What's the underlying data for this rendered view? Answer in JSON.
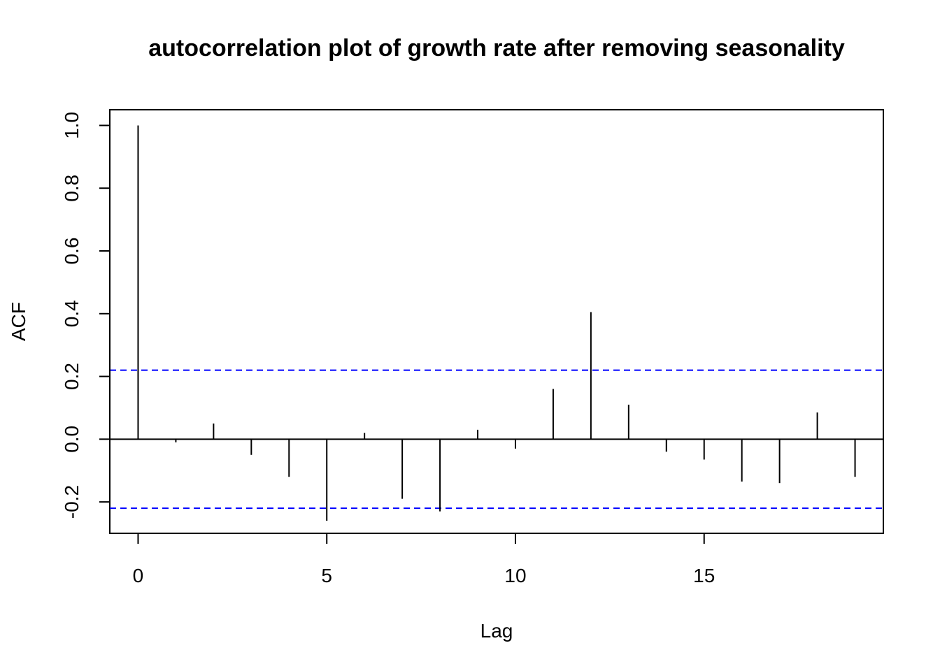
{
  "chart_data": {
    "type": "bar",
    "title": "autocorrelation plot of growth rate after removing seasonality",
    "xlabel": "Lag",
    "ylabel": "ACF",
    "x": [
      0,
      1,
      2,
      3,
      4,
      5,
      6,
      7,
      8,
      9,
      10,
      11,
      12,
      13,
      14,
      15,
      16,
      17,
      18,
      19
    ],
    "values": [
      1.0,
      -0.01,
      0.05,
      -0.05,
      -0.12,
      -0.26,
      0.02,
      -0.19,
      -0.23,
      0.03,
      -0.03,
      0.16,
      0.405,
      0.11,
      -0.04,
      -0.065,
      -0.135,
      -0.14,
      0.085,
      -0.12
    ],
    "xlim": [
      -0.75,
      19.75
    ],
    "ylim": [
      -0.3,
      1.05
    ],
    "xticks": [
      0,
      5,
      10,
      15
    ],
    "xtick_labels": [
      "0",
      "5",
      "10",
      "15"
    ],
    "yticks": [
      -0.2,
      0.0,
      0.2,
      0.4,
      0.6,
      0.8,
      1.0
    ],
    "ytick_labels": [
      "-0.2",
      "0.0",
      "0.2",
      "0.4",
      "0.6",
      "0.8",
      "1.0"
    ],
    "confidence_bounds": [
      0.22,
      -0.22
    ],
    "colors": {
      "bars": "#000000",
      "confidence": "#0000ff",
      "zero_line": "#000000"
    },
    "grid": false,
    "legend": "none"
  }
}
